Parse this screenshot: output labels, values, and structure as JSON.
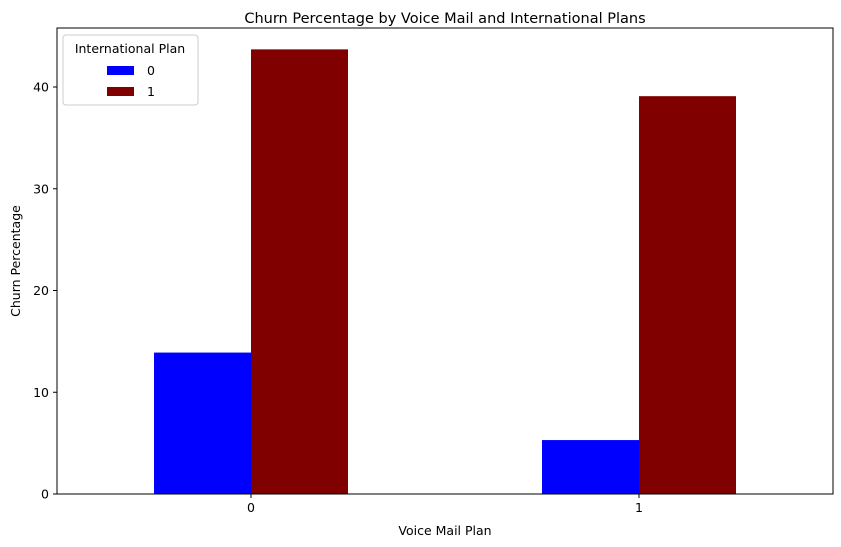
{
  "chart_data": {
    "type": "bar",
    "title": "Churn Percentage by Voice Mail and International Plans",
    "xlabel": "Voice Mail Plan",
    "ylabel": "Churn Percentage",
    "categories": [
      "0",
      "1"
    ],
    "ylim": [
      0,
      45.8
    ],
    "yticks": [
      "0",
      "10",
      "20",
      "30",
      "40"
    ],
    "grid": false,
    "legend": {
      "title": "International Plan",
      "placement": "top-left"
    },
    "series": [
      {
        "name": "0",
        "color": "#0000ff",
        "values": [
          13.9,
          5.3
        ]
      },
      {
        "name": "1",
        "color": "#800000",
        "values": [
          43.7,
          39.1
        ]
      }
    ]
  }
}
